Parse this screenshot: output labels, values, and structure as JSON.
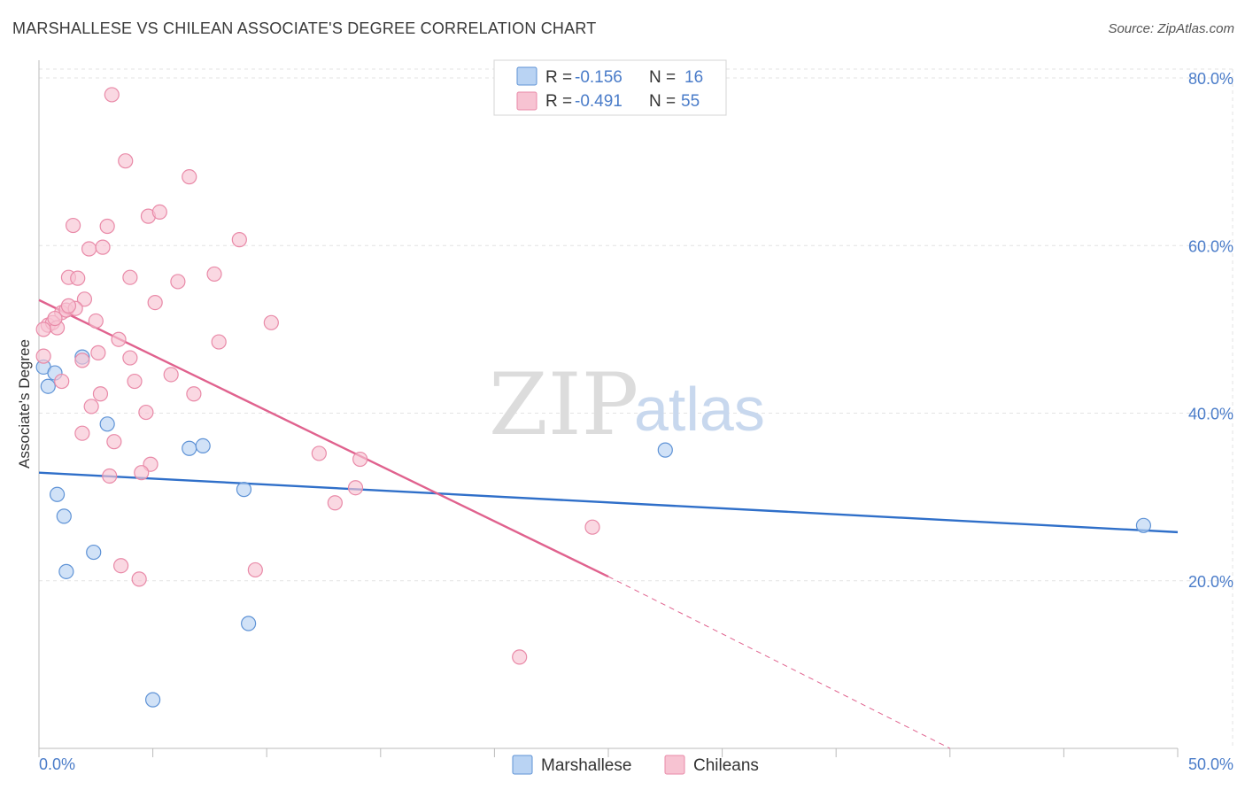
{
  "title": "MARSHALLESE VS CHILEAN ASSOCIATE'S DEGREE CORRELATION CHART",
  "source": "Source: ZipAtlas.com",
  "watermark": {
    "zip": "ZIP",
    "atlas": "atlas"
  },
  "colors": {
    "marshallese_fill": "#b9d3f3",
    "marshallese_stroke": "#5f93d6",
    "marshallese_line": "#2f6fc9",
    "chilean_fill": "#f7c3d2",
    "chilean_stroke": "#e98aa8",
    "chilean_line": "#e0628e",
    "tick_text": "#4a7cc9",
    "grid": "#e3e3e3"
  },
  "legend": {
    "rows": [
      {
        "r_label": "R = ",
        "r_value": "-0.156",
        "n_label": "N = ",
        "n_value": "16"
      },
      {
        "r_label": "R = ",
        "r_value": "-0.491",
        "n_label": "N = ",
        "n_value": "55"
      }
    ]
  },
  "bottom_legend": [
    "Marshallese",
    "Chileans"
  ],
  "chart_data": {
    "type": "scatter",
    "title": "MARSHALLESE VS CHILEAN ASSOCIATE'S DEGREE CORRELATION CHART",
    "xlabel": "",
    "ylabel": "Associate's Degree",
    "xlim": [
      0,
      50
    ],
    "ylim": [
      0,
      80
    ],
    "x_tick_labels": [
      "0.0%",
      "50.0%"
    ],
    "y_ticks": [
      20,
      40,
      60,
      80
    ],
    "y_tick_labels": [
      "20.0%",
      "40.0%",
      "60.0%",
      "80.0%"
    ],
    "series": [
      {
        "name": "Marshallese",
        "R": -0.156,
        "N": 16,
        "points": [
          [
            0.2,
            45.5
          ],
          [
            0.4,
            43.2
          ],
          [
            0.7,
            44.8
          ],
          [
            0.8,
            30.3
          ],
          [
            1.1,
            27.7
          ],
          [
            1.2,
            21.1
          ],
          [
            1.9,
            46.7
          ],
          [
            2.4,
            23.4
          ],
          [
            3.0,
            38.7
          ],
          [
            6.6,
            35.8
          ],
          [
            7.2,
            36.1
          ],
          [
            9.0,
            30.9
          ],
          [
            9.2,
            14.9
          ],
          [
            5.0,
            5.8
          ],
          [
            27.5,
            35.6
          ],
          [
            48.5,
            26.6
          ]
        ],
        "trend": {
          "x": [
            0,
            50
          ],
          "y": [
            32.9,
            25.8
          ],
          "style": "solid"
        }
      },
      {
        "name": "Chileans",
        "R": -0.491,
        "N": 55,
        "points": [
          [
            3.2,
            78.0
          ],
          [
            3.8,
            70.1
          ],
          [
            6.6,
            68.2
          ],
          [
            1.5,
            62.4
          ],
          [
            3.0,
            62.3
          ],
          [
            4.8,
            63.5
          ],
          [
            5.3,
            64.0
          ],
          [
            2.2,
            59.6
          ],
          [
            2.8,
            59.8
          ],
          [
            8.8,
            60.7
          ],
          [
            1.3,
            56.2
          ],
          [
            1.7,
            56.1
          ],
          [
            4.0,
            56.2
          ],
          [
            6.1,
            55.7
          ],
          [
            7.7,
            56.6
          ],
          [
            2.0,
            53.6
          ],
          [
            5.1,
            53.2
          ],
          [
            1.0,
            52.0
          ],
          [
            1.2,
            52.3
          ],
          [
            1.6,
            52.5
          ],
          [
            1.3,
            52.8
          ],
          [
            2.5,
            51.0
          ],
          [
            10.2,
            50.8
          ],
          [
            0.4,
            50.5
          ],
          [
            0.6,
            50.8
          ],
          [
            0.8,
            50.2
          ],
          [
            0.7,
            51.3
          ],
          [
            0.2,
            50.0
          ],
          [
            3.5,
            48.8
          ],
          [
            7.9,
            48.5
          ],
          [
            2.6,
            47.2
          ],
          [
            1.9,
            46.3
          ],
          [
            0.2,
            46.8
          ],
          [
            4.0,
            46.6
          ],
          [
            5.8,
            44.6
          ],
          [
            1.0,
            43.8
          ],
          [
            4.2,
            43.8
          ],
          [
            2.7,
            42.3
          ],
          [
            6.8,
            42.3
          ],
          [
            2.3,
            40.8
          ],
          [
            4.7,
            40.1
          ],
          [
            1.9,
            37.6
          ],
          [
            3.3,
            36.6
          ],
          [
            4.9,
            33.9
          ],
          [
            4.5,
            32.9
          ],
          [
            3.1,
            32.5
          ],
          [
            12.3,
            35.2
          ],
          [
            14.1,
            34.5
          ],
          [
            13.9,
            31.1
          ],
          [
            13.0,
            29.3
          ],
          [
            24.3,
            26.4
          ],
          [
            3.6,
            21.8
          ],
          [
            4.4,
            20.2
          ],
          [
            9.5,
            21.3
          ],
          [
            21.1,
            10.9
          ]
        ],
        "trend": {
          "x": [
            0,
            25
          ],
          "y": [
            53.5,
            20.5
          ],
          "style": "solid"
        },
        "trend_extension": {
          "x": [
            25,
            40
          ],
          "y": [
            20.5,
            0.0
          ],
          "style": "dashed"
        }
      }
    ]
  }
}
